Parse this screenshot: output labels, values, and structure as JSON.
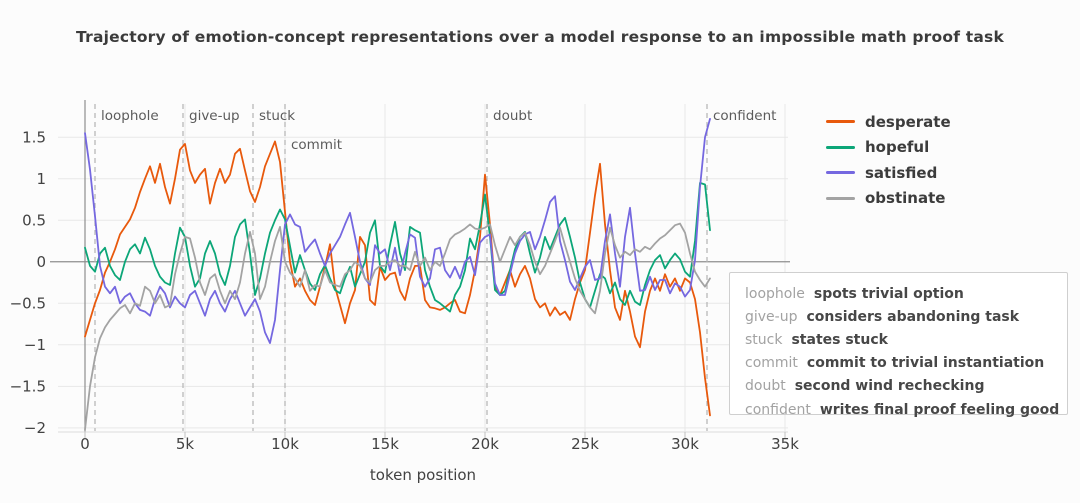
{
  "figure": {
    "title": "Trajectory of emotion-concept representations over a model response to an impossible math proof task"
  },
  "chart_data": {
    "type": "line",
    "title": "Trajectory of emotion-concept representations over a model response to an impossible math proof task",
    "xlabel": "token position",
    "ylabel": "",
    "xlim": [
      -1350,
      35150
    ],
    "ylim": [
      -2.05,
      1.9
    ],
    "grid": true,
    "legend_position": "top-right",
    "x_start": 0,
    "x_step": 250,
    "x_tick_values": [
      0,
      5000,
      10000,
      15000,
      20000,
      25000,
      30000,
      35000
    ],
    "x_tick_labels": [
      "0",
      "5k",
      "10k",
      "15k",
      "20k",
      "25k",
      "30k",
      "35k"
    ],
    "y_tick_values": [
      1.5,
      1,
      0.5,
      0,
      -0.5,
      -1,
      -1.5,
      -2
    ],
    "y_tick_labels": [
      "1.5",
      "1",
      "0.5",
      "0",
      "−0.5",
      "−1",
      "−1.5",
      "−2"
    ],
    "style": {
      "grid_color": "#e8e8e8",
      "axis_color": "#8f8f8f",
      "dashed_color": "#b4b4b4",
      "tick_text_color": "#424242",
      "spine_color": "#dcdcdc",
      "tick_mark_color": "#c0c0c0"
    },
    "events": [
      {
        "token": 500,
        "tag": "loophole",
        "description": "spots trivial option",
        "label_row": 0
      },
      {
        "token": 4900,
        "tag": "give-up",
        "description": "considers abandoning task",
        "label_row": 0
      },
      {
        "token": 8400,
        "tag": "stuck",
        "description": "states stuck",
        "label_row": 0
      },
      {
        "token": 10000,
        "tag": "commit",
        "description": "commit to trivial instantiation",
        "label_row": 1
      },
      {
        "token": 20100,
        "tag": "doubt",
        "description": "second wind rechecking",
        "label_row": 0
      },
      {
        "token": 31100,
        "tag": "confident",
        "description": "writes final proof feeling good",
        "label_row": 0
      }
    ],
    "series": [
      {
        "name": "desperate",
        "color": "#e8590c",
        "values": [
          -0.9,
          -0.7,
          -0.5,
          -0.34,
          -0.13,
          0,
          0.15,
          0.33,
          0.42,
          0.51,
          0.65,
          0.84,
          1,
          1.15,
          0.95,
          1.18,
          0.9,
          0.7,
          1,
          1.35,
          1.42,
          1.1,
          0.95,
          1.05,
          1.12,
          0.7,
          0.95,
          1.12,
          0.95,
          1.05,
          1.3,
          1.36,
          1.1,
          0.85,
          0.72,
          0.9,
          1.15,
          1.3,
          1.45,
          1.2,
          0.6,
          0,
          -0.3,
          -0.2,
          -0.35,
          -0.46,
          -0.52,
          -0.3,
          -0.06,
          0.21,
          -0.3,
          -0.52,
          -0.74,
          -0.5,
          -0.34,
          0.3,
          0.2,
          -0.46,
          -0.52,
          -0.06,
          -0.22,
          -0.15,
          -0.13,
          -0.35,
          -0.46,
          -0.2,
          -0.05,
          -0.05,
          -0.46,
          -0.55,
          -0.56,
          -0.58,
          -0.55,
          -0.5,
          -0.46,
          -0.6,
          -0.62,
          -0.4,
          -0.1,
          0.3,
          1.05,
          0.45,
          -0.3,
          -0.4,
          -0.25,
          -0.1,
          -0.3,
          -0.15,
          -0.05,
          -0.2,
          -0.45,
          -0.55,
          -0.5,
          -0.65,
          -0.55,
          -0.64,
          -0.6,
          -0.7,
          -0.45,
          -0.25,
          -0.1,
          0.35,
          0.8,
          1.18,
          0.45,
          -0.1,
          -0.55,
          -0.7,
          -0.35,
          -0.6,
          -0.9,
          -1.03,
          -0.6,
          -0.35,
          -0.2,
          -0.35,
          -0.15,
          -0.3,
          -0.2,
          -0.35,
          -0.2,
          -0.25,
          -0.45,
          -0.85,
          -1.4,
          -1.85
        ]
      },
      {
        "name": "hopeful",
        "color": "#0ca678",
        "values": [
          0.17,
          -0.05,
          -0.12,
          0.1,
          0.17,
          -0.05,
          -0.16,
          -0.22,
          0,
          0.15,
          0.21,
          0.1,
          0.29,
          0.15,
          -0.05,
          -0.18,
          -0.25,
          -0.28,
          0.1,
          0.41,
          0.3,
          -0.05,
          -0.3,
          -0.2,
          0.1,
          0.25,
          0.1,
          -0.15,
          -0.28,
          -0.05,
          0.3,
          0.45,
          0.51,
          0.1,
          -0.4,
          -0.2,
          0.1,
          0.35,
          0.5,
          0.63,
          0.51,
          0.19,
          -0.13,
          0.08,
          -0.1,
          -0.26,
          -0.34,
          -0.15,
          -0.04,
          -0.2,
          -0.34,
          -0.38,
          -0.2,
          -0.06,
          -0.3,
          -0.15,
          0,
          0.35,
          0.5,
          -0.05,
          -0.13,
          0.2,
          0.48,
          0.1,
          -0.1,
          0.42,
          0.38,
          0.35,
          -0.1,
          -0.3,
          -0.46,
          -0.5,
          -0.55,
          -0.6,
          -0.4,
          -0.3,
          -0.1,
          0.28,
          0.15,
          0.45,
          0.81,
          0.3,
          -0.34,
          -0.4,
          -0.35,
          -0.1,
          0.15,
          0.3,
          0.36,
          0.1,
          -0.13,
          0.05,
          0.3,
          0.15,
          0.3,
          0.45,
          0.53,
          0.3,
          0.05,
          -0.25,
          -0.45,
          -0.55,
          -0.35,
          -0.15,
          -0.2,
          -0.38,
          -0.25,
          -0.45,
          -0.52,
          -0.35,
          -0.48,
          -0.52,
          -0.28,
          -0.1,
          0.02,
          0.08,
          -0.08,
          0.02,
          0.1,
          0.03,
          -0.12,
          -0.18,
          0.25,
          0.95,
          0.93,
          0.38
        ]
      },
      {
        "name": "satisfied",
        "color": "#7568e0",
        "values": [
          1.55,
          1.11,
          0.55,
          -0.05,
          -0.3,
          -0.38,
          -0.3,
          -0.5,
          -0.42,
          -0.38,
          -0.5,
          -0.58,
          -0.6,
          -0.65,
          -0.45,
          -0.3,
          -0.38,
          -0.55,
          -0.42,
          -0.5,
          -0.55,
          -0.4,
          -0.35,
          -0.5,
          -0.65,
          -0.45,
          -0.35,
          -0.5,
          -0.6,
          -0.45,
          -0.35,
          -0.5,
          -0.65,
          -0.55,
          -0.45,
          -0.6,
          -0.85,
          -0.98,
          -0.7,
          -0.1,
          0.45,
          0.57,
          0.45,
          0.42,
          0.12,
          0.2,
          0.27,
          0.1,
          -0.05,
          0.1,
          0.2,
          0.3,
          0.45,
          0.59,
          0.3,
          0,
          -0.2,
          -0.28,
          0.2,
          0.1,
          0.15,
          -0.1,
          0.17,
          -0.16,
          0.1,
          0.33,
          0.29,
          -0.18,
          -0.3,
          -0.2,
          0.15,
          0.17,
          -0.1,
          -0.19,
          -0.06,
          -0.2,
          0,
          0.06,
          -0.16,
          0.23,
          0.3,
          0.33,
          -0.26,
          -0.4,
          -0.4,
          -0.15,
          0.1,
          0.25,
          0.33,
          0.36,
          0.15,
          0.3,
          0.5,
          0.72,
          0.79,
          0.25,
          0.02,
          -0.24,
          -0.34,
          -0.2,
          -0.06,
          0.02,
          -0.22,
          -0.2,
          0.25,
          0.57,
          0.1,
          -0.3,
          0.3,
          0.65,
          0.1,
          -0.35,
          -0.34,
          -0.18,
          -0.34,
          -0.22,
          -0.22,
          -0.38,
          -0.26,
          -0.3,
          -0.42,
          -0.34,
          0.02,
          0.9,
          1.5,
          1.72
        ]
      },
      {
        "name": "obstinate",
        "color": "#a3a3a3",
        "values": [
          -2.02,
          -1.5,
          -1.15,
          -0.92,
          -0.79,
          -0.7,
          -0.63,
          -0.56,
          -0.52,
          -0.62,
          -0.5,
          -0.53,
          -0.3,
          -0.35,
          -0.5,
          -0.4,
          -0.55,
          -0.52,
          -0.15,
          0.1,
          0.3,
          0.28,
          0.05,
          -0.25,
          -0.4,
          -0.2,
          -0.15,
          -0.35,
          -0.5,
          -0.35,
          -0.45,
          -0.25,
          0.1,
          0.36,
          0.1,
          -0.45,
          -0.3,
          0,
          0.25,
          0.42,
          0,
          -0.13,
          -0.2,
          -0.3,
          -0.1,
          -0.35,
          -0.28,
          -0.3,
          -0.1,
          -0.25,
          -0.28,
          -0.3,
          -0.15,
          -0.1,
          0,
          -0.05,
          -0.2,
          -0.25,
          -0.1,
          -0.05,
          -0.05,
          0,
          0.02,
          -0.05,
          -0.05,
          -0.1,
          0.12,
          -0.05,
          0.05,
          -0.1,
          0,
          -0.05,
          0.1,
          0.27,
          0.33,
          0.36,
          0.4,
          0.45,
          0.4,
          0.39,
          0.41,
          0.45,
          0.2,
          0,
          0.15,
          0.3,
          0.2,
          0.3,
          0.35,
          0.2,
          0,
          -0.15,
          -0.05,
          0.1,
          0.25,
          0.41,
          0.2,
          0,
          -0.2,
          -0.35,
          -0.45,
          -0.55,
          -0.62,
          -0.35,
          0.1,
          0.41,
          0.2,
          0.05,
          0.12,
          0.08,
          0.15,
          0.12,
          0.18,
          0.15,
          0.22,
          0.28,
          0.32,
          0.38,
          0.44,
          0.46,
          0.35,
          0.1,
          -0.12,
          -0.22,
          -0.3,
          -0.2
        ]
      }
    ]
  }
}
